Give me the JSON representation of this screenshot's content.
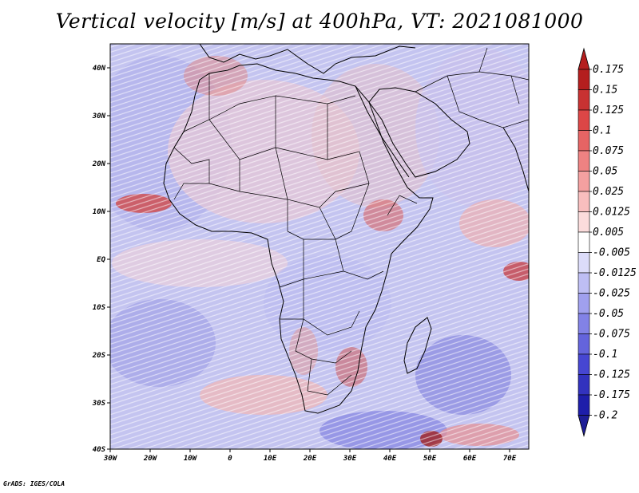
{
  "title": "Vertical velocity [m/s] at 400hPa, VT: 2021081000",
  "credit": "GrADS: IGES/COLA",
  "map": {
    "lat_labels": [
      "40N",
      "30N",
      "20N",
      "10N",
      "EQ",
      "10S",
      "20S",
      "30S",
      "40S"
    ],
    "lon_labels": [
      "30W",
      "20W",
      "10W",
      "0",
      "10E",
      "20E",
      "30E",
      "40E",
      "50E",
      "60E",
      "70E"
    ],
    "field": "vertical velocity",
    "level": "400hPa",
    "valid_time": "2021081000"
  },
  "colorbar": {
    "labels": [
      "0.175",
      "0.15",
      "0.125",
      "0.1",
      "0.075",
      "0.05",
      "0.025",
      "0.0125",
      "0.005",
      "-0.005",
      "-0.0125",
      "-0.025",
      "-0.05",
      "-0.075",
      "-0.1",
      "-0.125",
      "-0.175",
      "-0.2"
    ],
    "colors": [
      "#b41e1e",
      "#c83232",
      "#dc4646",
      "#e66464",
      "#ee8282",
      "#f4a0a0",
      "#f8bebe",
      "#fbdcdc",
      "#ffffff",
      "#dcdcfa",
      "#bebef4",
      "#a0a0ee",
      "#8282e6",
      "#6464dc",
      "#4646d2",
      "#3232be",
      "#1e1eaa",
      "#0a0a8c"
    ],
    "top_arrow_color": "#b41e1e",
    "bottom_arrow_color": "#1e1e96"
  }
}
